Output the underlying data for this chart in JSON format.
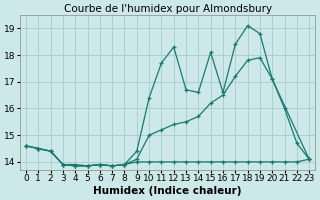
{
  "title": "Courbe de l'humidex pour Almondsbury",
  "xlabel": "Humidex (Indice chaleur)",
  "xlim": [
    -0.5,
    23.5
  ],
  "ylim": [
    13.7,
    19.5
  ],
  "yticks": [
    14,
    15,
    16,
    17,
    18,
    19
  ],
  "xticks": [
    0,
    1,
    2,
    3,
    4,
    5,
    6,
    7,
    8,
    9,
    10,
    11,
    12,
    13,
    14,
    15,
    16,
    17,
    18,
    19,
    20,
    21,
    22,
    23
  ],
  "bg_color": "#cce8e8",
  "grid_color": "#aacccc",
  "line_color": "#1a7a6e",
  "line1_x": [
    0,
    1,
    2,
    3,
    4,
    5,
    6,
    7,
    8,
    9,
    10,
    11,
    12,
    13,
    14,
    15,
    16,
    17,
    18,
    19,
    20,
    21,
    22,
    23
  ],
  "line1_y": [
    14.6,
    14.5,
    14.4,
    13.9,
    13.9,
    13.85,
    13.9,
    13.85,
    13.9,
    14.4,
    16.4,
    17.7,
    18.3,
    16.7,
    16.6,
    18.1,
    16.6,
    18.4,
    19.1,
    18.8,
    17.1,
    16.0,
    14.7,
    14.1
  ],
  "line2_x": [
    0,
    1,
    2,
    3,
    4,
    5,
    6,
    7,
    8,
    9,
    10,
    11,
    12,
    13,
    14,
    15,
    16,
    17,
    18,
    19,
    20,
    23
  ],
  "line2_y": [
    14.6,
    14.5,
    14.4,
    13.9,
    13.85,
    13.85,
    13.9,
    13.85,
    13.9,
    14.1,
    15.0,
    15.2,
    15.4,
    15.5,
    15.7,
    16.2,
    16.5,
    17.2,
    17.8,
    17.9,
    17.1,
    14.1
  ],
  "line3_x": [
    0,
    1,
    2,
    3,
    4,
    5,
    6,
    7,
    8,
    9,
    10,
    11,
    12,
    13,
    14,
    15,
    16,
    17,
    18,
    19,
    20,
    21,
    22,
    23
  ],
  "line3_y": [
    14.6,
    14.5,
    14.4,
    13.9,
    13.85,
    13.85,
    13.9,
    13.85,
    13.9,
    14.0,
    14.0,
    14.0,
    14.0,
    14.0,
    14.0,
    14.0,
    14.0,
    14.0,
    14.0,
    14.0,
    14.0,
    14.0,
    14.0,
    14.1
  ],
  "title_fontsize": 7.5,
  "tick_fontsize": 6.5,
  "xlabel_fontsize": 7.5
}
